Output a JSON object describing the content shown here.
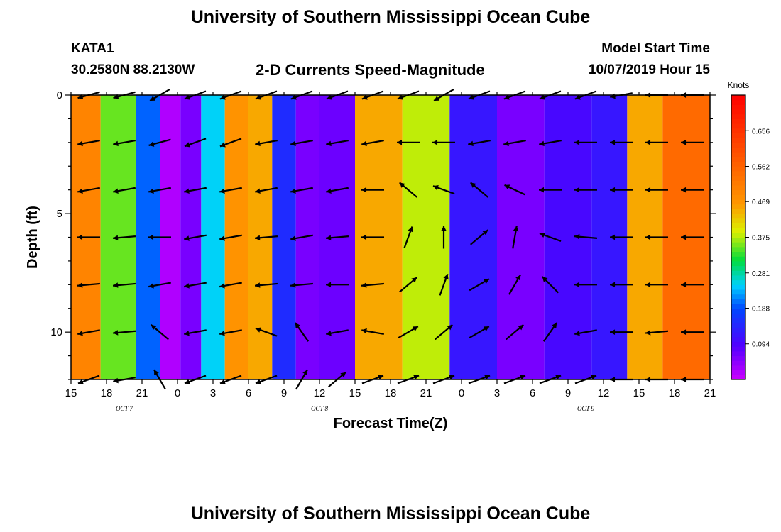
{
  "header": {
    "title": "University of Southern Mississippi Ocean Cube",
    "footer_title": "University of Southern Mississippi Ocean Cube",
    "station": "KATA1",
    "coords": "30.2580N 88.2130W",
    "plot_title": "2-D Currents Speed-Magnitude",
    "model_start_label": "Model Start Time",
    "model_start_value": "10/07/2019 Hour 15"
  },
  "chart_data": {
    "type": "heatmap",
    "title": "2-D Currents Speed-Magnitude",
    "xlabel": "Forecast Time(Z)",
    "ylabel": "Depth (ft)",
    "x_hours": [
      0,
      54
    ],
    "y_range": [
      0,
      12
    ],
    "x_tick_labels": [
      "15",
      "18",
      "21",
      "0",
      "3",
      "6",
      "9",
      "12",
      "15",
      "18",
      "21",
      "0",
      "3",
      "6",
      "9",
      "12",
      "15",
      "18",
      "21"
    ],
    "x_tick_hours": [
      0,
      3,
      6,
      9,
      12,
      15,
      18,
      21,
      24,
      27,
      30,
      33,
      36,
      39,
      42,
      45,
      48,
      51,
      54
    ],
    "date_labels": [
      {
        "label": "OCT 7",
        "hour": 4.5
      },
      {
        "label": "OCT 8",
        "hour": 21
      },
      {
        "label": "OCT 9",
        "hour": 43.5
      }
    ],
    "y_tick_labels": [
      "0",
      "5",
      "10"
    ],
    "y_tick_values": [
      0,
      5,
      10
    ],
    "colorbar": {
      "unit": "Knots",
      "range": [
        0.0,
        0.75
      ],
      "tick_values": [
        0.094,
        0.188,
        0.281,
        0.375,
        0.469,
        0.562,
        0.656
      ],
      "tick_labels": [
        "0.094",
        "0.188",
        "0.281",
        "0.375",
        "0.469",
        "0.562",
        "0.656"
      ]
    },
    "speed_columns": [
      {
        "hour": 0.5,
        "speed": 0.5
      },
      {
        "hour": 4.5,
        "speed": 0.35
      },
      {
        "hour": 6.5,
        "speed": 0.2
      },
      {
        "hour": 8.5,
        "speed": 0.02
      },
      {
        "hour": 10,
        "speed": 0.06
      },
      {
        "hour": 12,
        "speed": 0.25
      },
      {
        "hour": 14,
        "speed": 0.47
      },
      {
        "hour": 16,
        "speed": 0.45
      },
      {
        "hour": 18,
        "speed": 0.15
      },
      {
        "hour": 20,
        "speed": 0.06
      },
      {
        "hour": 22,
        "speed": 0.07
      },
      {
        "hour": 26,
        "speed": 0.45
      },
      {
        "hour": 30,
        "speed": 0.38
      },
      {
        "hour": 34,
        "speed": 0.12
      },
      {
        "hour": 38,
        "speed": 0.06
      },
      {
        "hour": 42,
        "speed": 0.1
      },
      {
        "hour": 46,
        "speed": 0.12
      },
      {
        "hour": 48,
        "speed": 0.45
      },
      {
        "hour": 52,
        "speed": 0.55
      }
    ],
    "vector_x_hours": [
      1.5,
      4.5,
      7.5,
      10.5,
      13.5,
      16.5,
      19.5,
      22.5,
      25.5,
      28.5,
      31.5,
      34.5,
      37.5,
      40.5,
      43.5,
      46.5,
      49.5,
      52.5
    ],
    "vector_depths": [
      0,
      2,
      4,
      6,
      8,
      10,
      12
    ],
    "vector_angles_deg": [
      [
        195,
        195,
        210,
        200,
        200,
        200,
        200,
        200,
        200,
        200,
        210,
        200,
        200,
        200,
        200,
        190,
        180,
        180
      ],
      [
        190,
        190,
        195,
        200,
        200,
        190,
        190,
        190,
        190,
        180,
        180,
        190,
        190,
        190,
        180,
        180,
        180,
        180
      ],
      [
        190,
        190,
        190,
        190,
        190,
        190,
        190,
        190,
        180,
        140,
        160,
        140,
        155,
        180,
        180,
        180,
        180,
        180
      ],
      [
        180,
        185,
        180,
        190,
        190,
        185,
        190,
        185,
        180,
        70,
        90,
        40,
        80,
        160,
        175,
        180,
        180,
        180
      ],
      [
        185,
        185,
        190,
        190,
        190,
        185,
        185,
        180,
        185,
        40,
        70,
        30,
        60,
        135,
        180,
        180,
        180,
        180
      ],
      [
        190,
        185,
        140,
        190,
        190,
        160,
        125,
        190,
        170,
        30,
        40,
        30,
        40,
        55,
        190,
        180,
        185,
        180
      ],
      [
        200,
        190,
        120,
        200,
        200,
        200,
        60,
        40,
        20,
        20,
        20,
        20,
        20,
        20,
        20,
        180,
        180,
        180
      ]
    ]
  }
}
